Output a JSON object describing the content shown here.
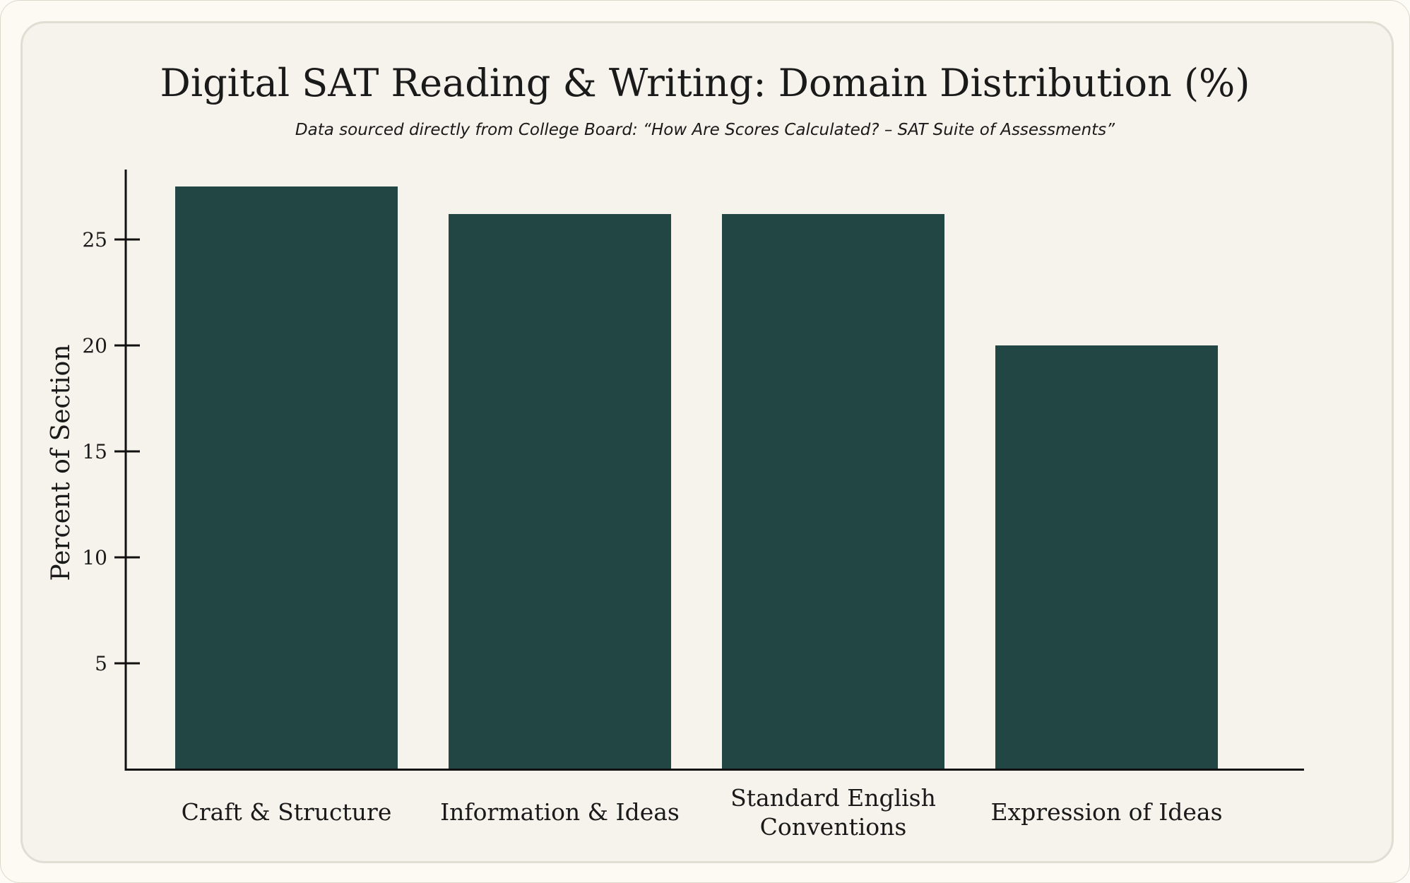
{
  "colors": {
    "bar": "#224644",
    "axis": "#111111",
    "text": "#1a1a1a",
    "background": "#f5f3ec"
  },
  "chart_data": {
    "type": "bar",
    "title": "Digital SAT Reading & Writing: Domain Distribution (%)",
    "subtitle": "Data sourced directly from College Board: “How Are Scores Calculated? – SAT Suite of Assessments”",
    "xlabel": "",
    "ylabel": "Percent of Section",
    "categories": [
      [
        "Craft & Structure"
      ],
      [
        "Information & Ideas"
      ],
      [
        "Standard English",
        "Conventions"
      ],
      [
        "Expression of Ideas"
      ]
    ],
    "values": [
      27.5,
      26.2,
      26.2,
      20
    ],
    "ylim": [
      0,
      28.5
    ],
    "yticks": [
      5,
      10,
      15,
      20,
      25
    ],
    "grid": false,
    "legend": "none"
  }
}
